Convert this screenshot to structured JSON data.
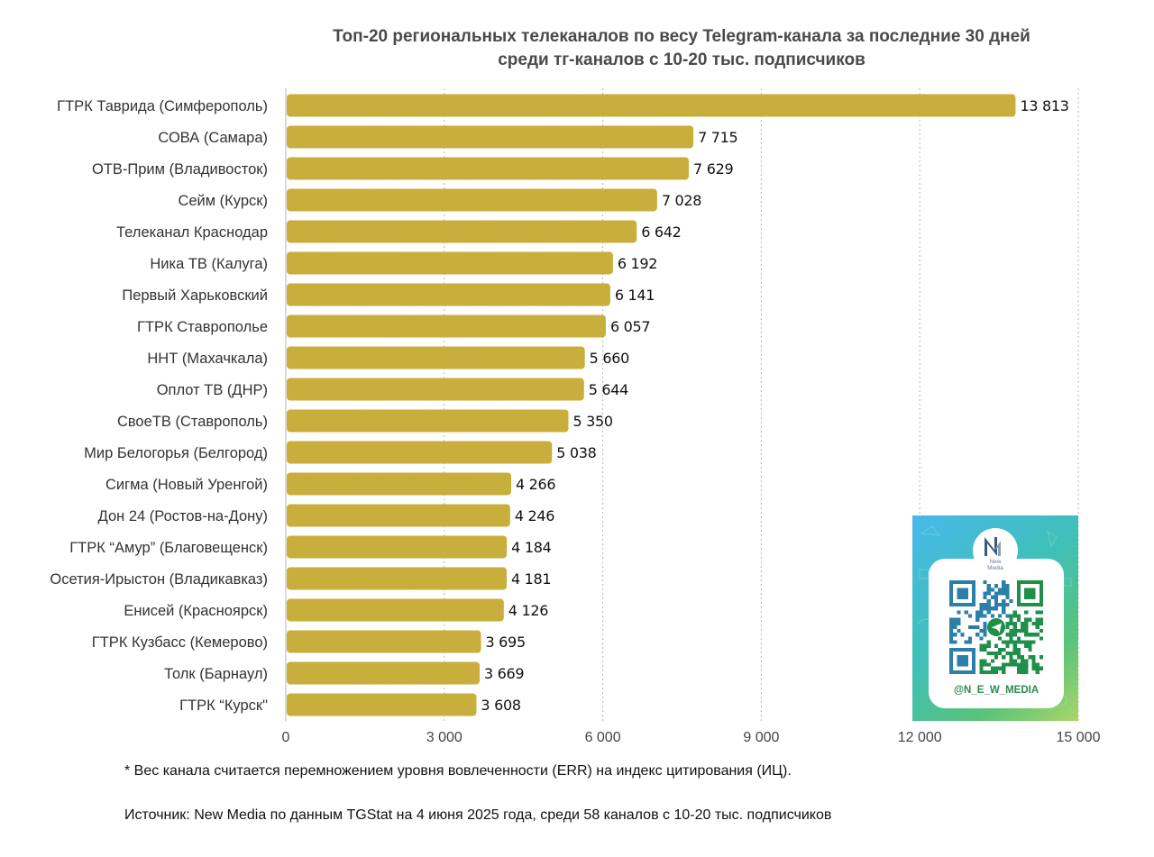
{
  "chart_data": {
    "type": "bar",
    "orientation": "horizontal",
    "title_lines": [
      "Топ-20 региональных телеканалов по весу Telegram-канала за последние 30 дней",
      "среди тг-каналов с 10-20 тыс. подписчиков"
    ],
    "categories": [
      "ГТРК Таврида (Симферополь)",
      "СОВА (Самара)",
      "ОТВ-Прим (Владивосток)",
      "Сейм (Курск)",
      "Телеканал Краснодар",
      "Ника ТВ (Калуга)",
      "Первый Харьковский",
      "ГТРК Ставрополье",
      "ННТ (Махачкала)",
      "Оплот ТВ (ДНР)",
      "СвоеТВ (Ставрополь)",
      "Мир Белогорья (Белгород)",
      "Сигма (Новый Уренгой)",
      "Дон 24 (Ростов-на-Дону)",
      "ГТРК “Амур” (Благовещенск)",
      "Осетия-Ирыстон (Владикавказ)",
      "Енисей (Красноярск)",
      "ГТРК Кузбасс (Кемерово)",
      "Толк (Барнаул)",
      "ГТРК “Курск\""
    ],
    "values": [
      13813,
      7715,
      7629,
      7028,
      6642,
      6192,
      6141,
      6057,
      5660,
      5644,
      5350,
      5038,
      4266,
      4246,
      4184,
      4181,
      4126,
      3695,
      3669,
      3608
    ],
    "value_labels": [
      "13 813",
      "7 715",
      "7 629",
      "7 028",
      "6 642",
      "6 192",
      "6 141",
      "6 057",
      "5 660",
      "5 644",
      "5 350",
      "5 038",
      "4 266",
      "4 246",
      "4 184",
      "4 181",
      "4 126",
      "3 695",
      "3 669",
      "3 608"
    ],
    "xlim": [
      0,
      15000
    ],
    "x_ticks": [
      0,
      3000,
      6000,
      9000,
      12000,
      15000
    ],
    "x_tick_labels": [
      "0",
      "3 000",
      "6 000",
      "9 000",
      "12 000",
      "15 000"
    ],
    "grid": "vertical-dashed",
    "bar_color": "#c9ad34",
    "legend": "none"
  },
  "qr_card": {
    "logo_text": "New\nMedia",
    "handle": "@N_E_W_MEDIA"
  },
  "footnotes": {
    "note": "* Вес канала считается перемножением уровня вовлеченности (ERR) на индекс цитирования (ИЦ).",
    "source": "Источник: New Media по данным TGStat на 4 июня 2025 года, среди 58 каналов с 10-20 тыс. подписчиков"
  }
}
